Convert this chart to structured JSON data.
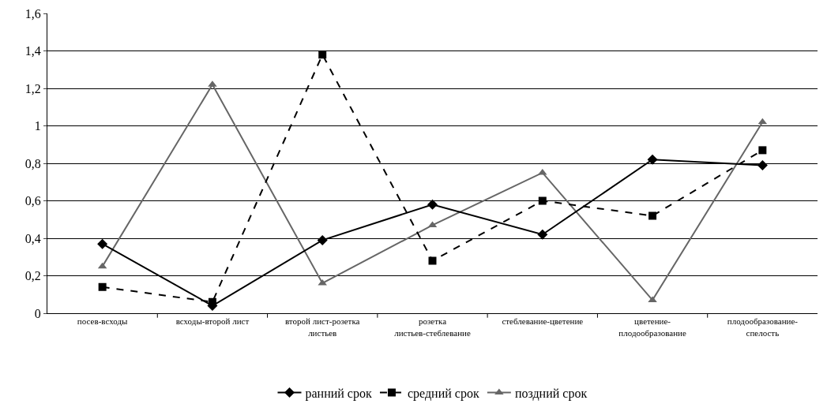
{
  "chart_data": {
    "type": "line",
    "categories": [
      "посев-всходы",
      "всходы-второй лист",
      "второй лист-розетка листьев",
      "розетка листьев-стеблевание",
      "стеблевание-цветение",
      "цветение-плодообразование",
      "плодообразование-спелость"
    ],
    "series": [
      {
        "name": "ранний срок",
        "color": "#000000",
        "marker": "diamond",
        "line_style": "solid",
        "values": [
          0.37,
          0.04,
          0.39,
          0.58,
          0.42,
          0.82,
          0.79
        ]
      },
      {
        "name": "средний срок",
        "color": "#000000",
        "marker": "square",
        "line_style": "dashed",
        "values": [
          0.14,
          0.06,
          1.38,
          0.28,
          0.6,
          0.52,
          0.87
        ]
      },
      {
        "name": "поздний срок",
        "color": "#666666",
        "marker": "triangle",
        "line_style": "solid",
        "values": [
          0.25,
          1.22,
          0.16,
          0.47,
          0.75,
          0.07,
          1.02
        ]
      }
    ],
    "ylim": [
      0,
      1.6
    ],
    "yticks": [
      {
        "value": 0,
        "label": "0"
      },
      {
        "value": 0.2,
        "label": "0,2"
      },
      {
        "value": 0.4,
        "label": "0,4"
      },
      {
        "value": 0.6,
        "label": "0,6"
      },
      {
        "value": 0.8,
        "label": "0,8"
      },
      {
        "value": 1,
        "label": "1"
      },
      {
        "value": 1.2,
        "label": "1,2"
      },
      {
        "value": 1.4,
        "label": "1,4"
      },
      {
        "value": 1.6,
        "label": "1,6"
      }
    ],
    "grid": "y",
    "legend": "bottom"
  }
}
